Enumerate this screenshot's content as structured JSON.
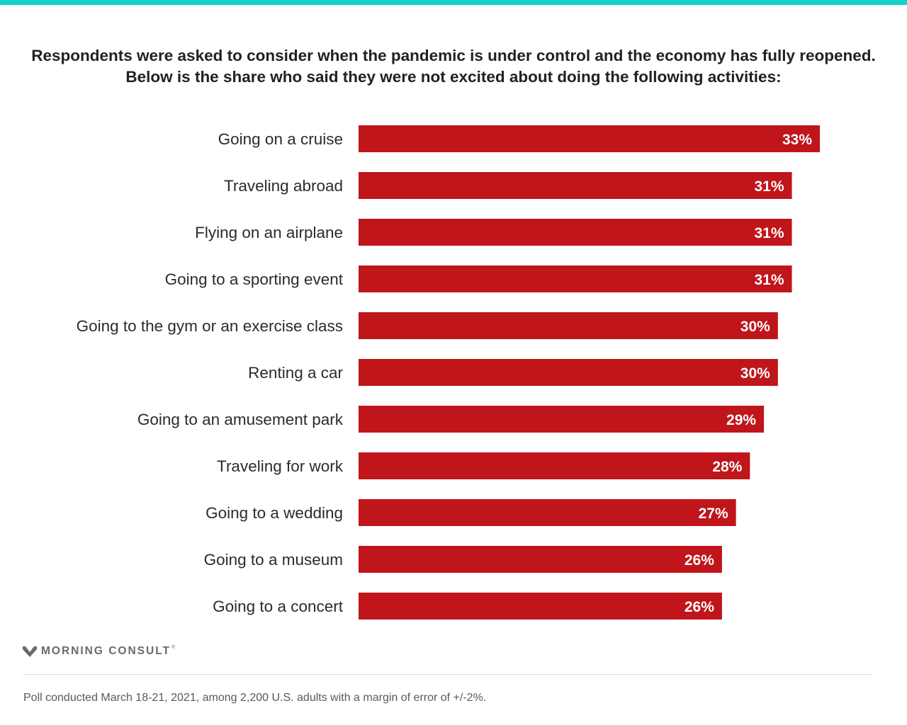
{
  "colors": {
    "accent_strip": "#12d3c8",
    "bar": "#bf151b",
    "value_text": "#ffffff"
  },
  "title": "Respondents were asked to consider when the pandemic is under control and the economy has fully reopened. Below is the share who said they were not excited about doing the following activities:",
  "chart_data": {
    "type": "bar",
    "orientation": "horizontal",
    "categories": [
      "Going on a cruise",
      "Traveling abroad",
      "Flying on an airplane",
      "Going to a sporting event",
      "Going to the gym or an exercise class",
      "Renting a car",
      "Going to an amusement park",
      "Traveling for work",
      "Going to a wedding",
      "Going to a museum",
      "Going to a concert"
    ],
    "values": [
      33,
      31,
      31,
      31,
      30,
      30,
      29,
      28,
      27,
      26,
      26
    ],
    "value_labels": [
      "33%",
      "31%",
      "31%",
      "31%",
      "30%",
      "30%",
      "29%",
      "28%",
      "27%",
      "26%",
      "26%"
    ],
    "unit": "%",
    "xlim": [
      0,
      33
    ],
    "grid": false,
    "legend": "none"
  },
  "brand": {
    "logo_icon": "morning-consult-m-icon",
    "name": "MORNING CONSULT",
    "mark": "®"
  },
  "footnote": "Poll conducted March 18-21, 2021, among 2,200 U.S. adults with a margin of error of +/-2%."
}
